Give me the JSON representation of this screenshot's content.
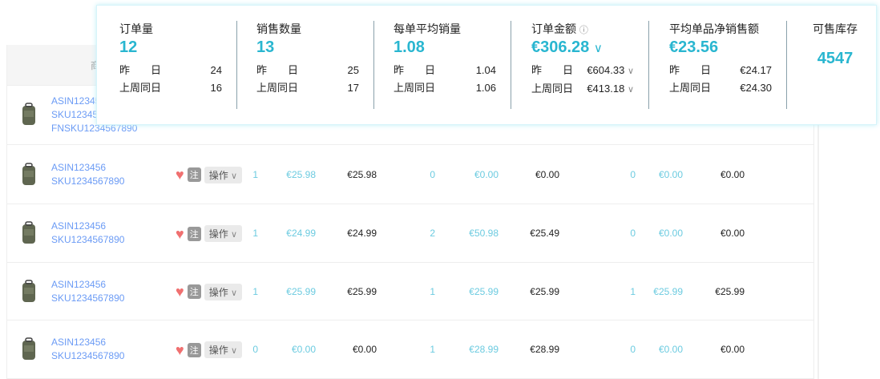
{
  "table": {
    "header_first": "商",
    "rows": [
      {
        "asin": "ASIN123456",
        "sku": "SKU1234567890",
        "fnsku": "FNSKU1234567890",
        "vals": []
      },
      {
        "asin": "ASIN123456",
        "sku": "SKU1234567890",
        "vals": [
          "1",
          "€25.98",
          "€25.98",
          "0",
          "€0.00",
          "€0.00",
          "0",
          "€0.00",
          "€0.00"
        ]
      },
      {
        "asin": "ASIN123456",
        "sku": "SKU1234567890",
        "vals": [
          "1",
          "€24.99",
          "€24.99",
          "2",
          "€50.98",
          "€25.49",
          "0",
          "€0.00",
          "€0.00"
        ]
      },
      {
        "asin": "ASIN123456",
        "sku": "SKU1234567890",
        "vals": [
          "1",
          "€25.99",
          "€25.99",
          "1",
          "€25.99",
          "€25.99",
          "1",
          "€25.99",
          "€25.99"
        ]
      },
      {
        "asin": "ASIN123456",
        "sku": "SKU1234567890",
        "vals": [
          "0",
          "€0.00",
          "€0.00",
          "1",
          "€28.99",
          "€28.99",
          "0",
          "€0.00",
          "€0.00"
        ]
      }
    ],
    "note_label": "注",
    "op_label": "操作"
  },
  "summary": {
    "yesterday_label": "昨　　日",
    "lastweek_label": "上周同日",
    "metrics": [
      {
        "title": "订单量",
        "value": "12",
        "yesterday": "24",
        "lastweek": "16"
      },
      {
        "title": "销售数量",
        "value": "13",
        "yesterday": "25",
        "lastweek": "17"
      },
      {
        "title": "每单平均销量",
        "value": "1.08",
        "yesterday": "1.04",
        "lastweek": "1.06"
      },
      {
        "title": "订单金额",
        "value": "€306.28",
        "yesterday": "€604.33",
        "lastweek": "€413.18"
      },
      {
        "title": "平均单品净销售额",
        "value": "€23.56",
        "yesterday": "€24.17",
        "lastweek": "€24.30"
      },
      {
        "title": "可售库存",
        "value": "4547"
      }
    ]
  },
  "colors": {
    "accent": "#29b6d0",
    "link": "#6b9bf5",
    "heart": "#f07070"
  }
}
